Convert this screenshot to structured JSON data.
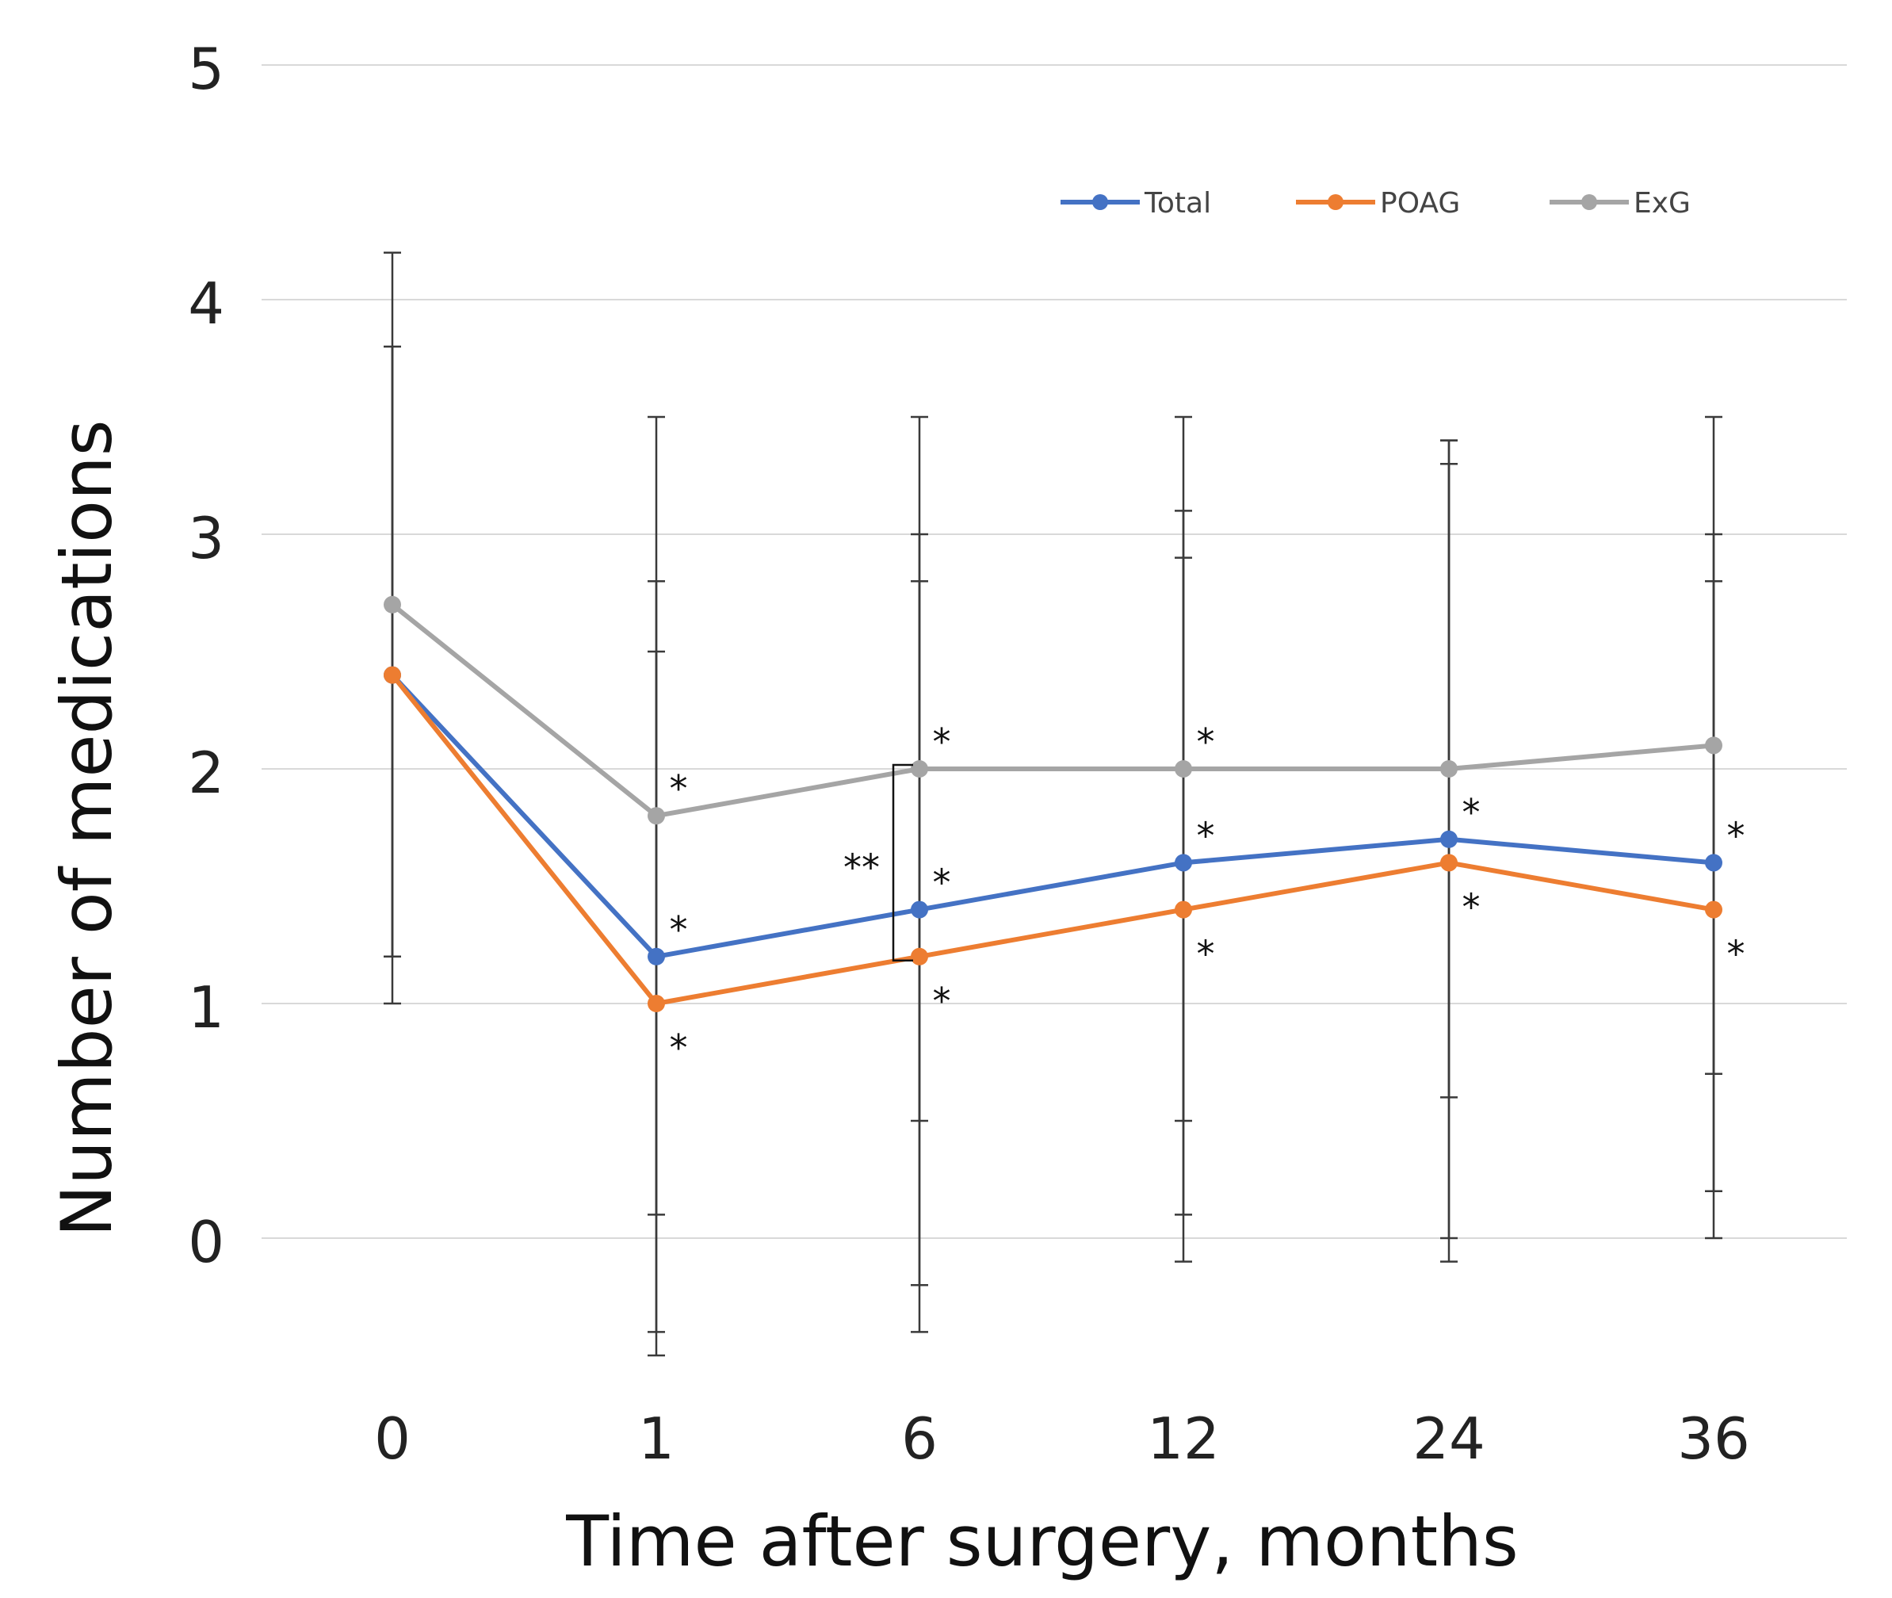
{
  "chart_data": {
    "type": "line",
    "title": "",
    "xlabel": "Time after surgery, months",
    "ylabel": "Number of medications",
    "categories": [
      "0",
      "1",
      "6",
      "12",
      "24",
      "36"
    ],
    "ylim": [
      -0.5,
      5
    ],
    "yticks": [
      0,
      1,
      2,
      3,
      4,
      5
    ],
    "grid": true,
    "legend_position": "top-right",
    "series": [
      {
        "name": "Total",
        "color": "#4472C4",
        "values": [
          2.4,
          1.2,
          1.4,
          1.6,
          1.7,
          1.6
        ],
        "error_low": [
          1.2,
          -0.4,
          -0.2,
          0.1,
          0.0,
          0.2
        ],
        "error_high": [
          3.8,
          2.8,
          3.0,
          3.1,
          3.4,
          3.0
        ]
      },
      {
        "name": "POAG",
        "color": "#ED7D31",
        "values": [
          2.4,
          1.0,
          1.2,
          1.4,
          1.6,
          1.4
        ],
        "error_low": [
          1.0,
          -0.5,
          -0.4,
          -0.1,
          -0.1,
          0.0
        ],
        "error_high": [
          3.8,
          2.5,
          2.8,
          2.9,
          3.3,
          2.8
        ]
      },
      {
        "name": "ExG",
        "color": "#A5A5A5",
        "values": [
          2.7,
          1.8,
          2.0,
          2.0,
          2.0,
          2.1
        ],
        "error_low": [
          1.2,
          0.1,
          0.5,
          0.5,
          0.6,
          0.7
        ],
        "error_high": [
          4.2,
          3.5,
          3.5,
          3.5,
          3.4,
          3.5
        ]
      }
    ],
    "annotations": [
      {
        "text": "*",
        "series": "ExG",
        "index": 1,
        "position": "above"
      },
      {
        "text": "*",
        "series": "ExG",
        "index": 2,
        "position": "above"
      },
      {
        "text": "*",
        "series": "ExG",
        "index": 3,
        "position": "above"
      },
      {
        "text": "*",
        "series": "Total",
        "index": 1,
        "position": "above"
      },
      {
        "text": "*",
        "series": "Total",
        "index": 2,
        "position": "above"
      },
      {
        "text": "*",
        "series": "Total",
        "index": 3,
        "position": "above"
      },
      {
        "text": "*",
        "series": "Total",
        "index": 4,
        "position": "above"
      },
      {
        "text": "*",
        "series": "Total",
        "index": 5,
        "position": "above"
      },
      {
        "text": "*",
        "series": "POAG",
        "index": 1,
        "position": "below"
      },
      {
        "text": "*",
        "series": "POAG",
        "index": 2,
        "position": "below"
      },
      {
        "text": "*",
        "series": "POAG",
        "index": 3,
        "position": "below"
      },
      {
        "text": "*",
        "series": "POAG",
        "index": 4,
        "position": "below"
      },
      {
        "text": "*",
        "series": "POAG",
        "index": 5,
        "position": "below"
      }
    ],
    "comparison": {
      "text": "**",
      "index": 2,
      "from_value": 2.0,
      "to_value": 1.2
    }
  }
}
